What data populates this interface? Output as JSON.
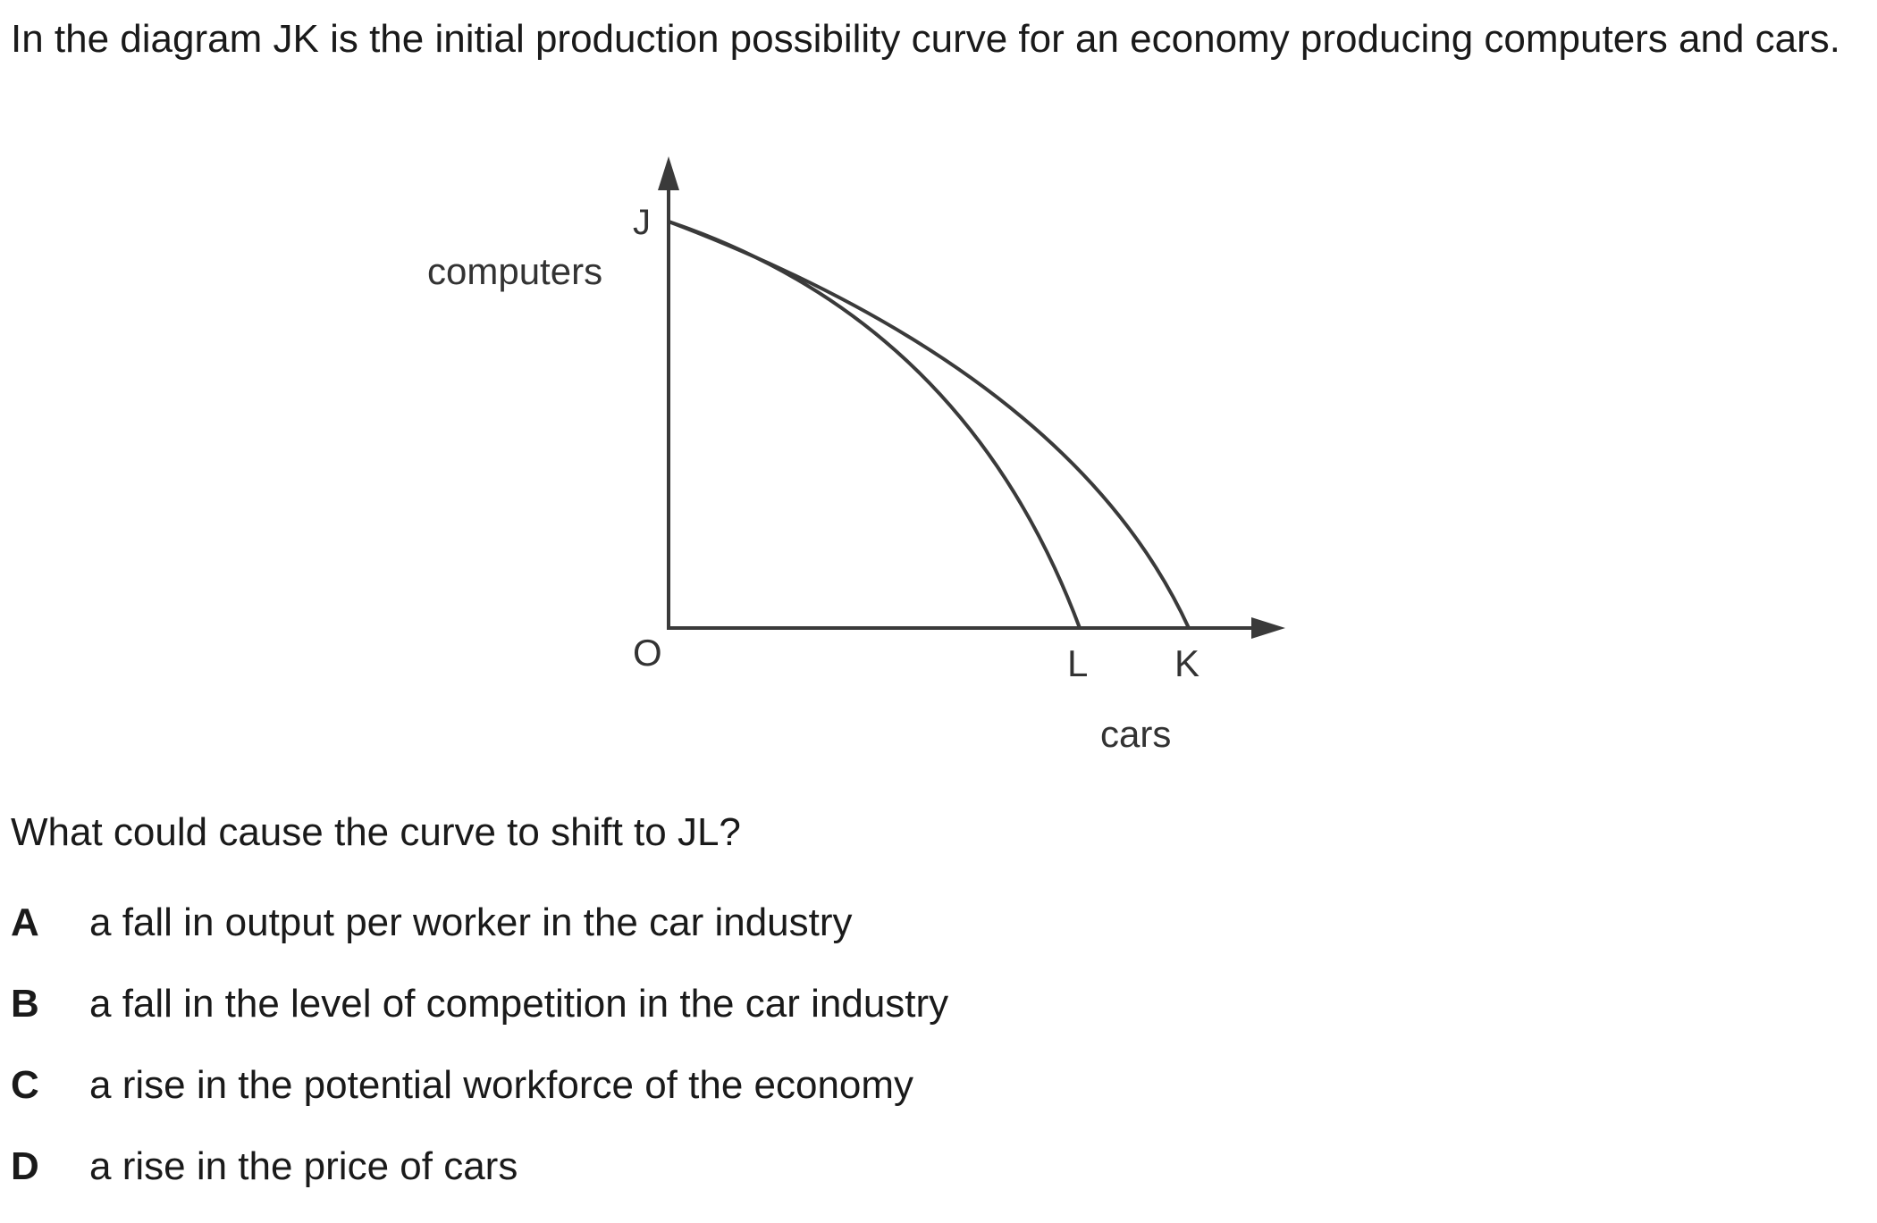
{
  "intro_text": "In the diagram JK is the initial production possibility curve for an economy producing computers and cars.",
  "diagram": {
    "y_axis_label": "computers",
    "x_axis_label": "cars",
    "origin_label": "O",
    "point_j_label": "J",
    "point_l_label": "L",
    "point_k_label": "K",
    "curves": [
      {
        "from": "J",
        "to": "K",
        "role": "initial"
      },
      {
        "from": "J",
        "to": "L",
        "role": "shifted"
      }
    ],
    "line_color": "#3a3a3a"
  },
  "question_text": "What could cause the curve to shift to JL?",
  "options": [
    {
      "letter": "A",
      "text": "a fall in output per worker in the car industry"
    },
    {
      "letter": "B",
      "text": "a fall in the level of competition in the car industry"
    },
    {
      "letter": "C",
      "text": "a rise in the potential workforce of the economy"
    },
    {
      "letter": "D",
      "text": "a rise in the price of cars"
    }
  ]
}
